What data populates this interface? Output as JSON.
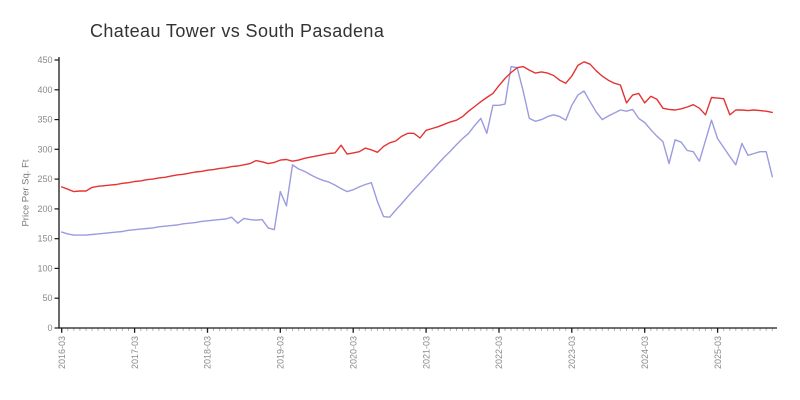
{
  "chart_data": {
    "type": "line",
    "title": "Chateau Tower vs South Pasadena",
    "ylabel": "Price Per Sq. Ft",
    "xlabel": "",
    "x_unit": "month",
    "x_start": "2016-03",
    "x_end": "2025-12",
    "x_major_ticks": [
      "2016-03",
      "2017-03",
      "2018-03",
      "2019-03",
      "2020-03",
      "2021-03",
      "2022-03",
      "2023-03",
      "2024-03",
      "2025-03"
    ],
    "x_major_tick_interval_months": 12,
    "x_minor_tick_interval_months": 1,
    "x_tick_rotation": 90,
    "ylim": [
      0,
      450
    ],
    "y_ticks": [
      0,
      50,
      100,
      150,
      200,
      250,
      300,
      350,
      400,
      450
    ],
    "grid": false,
    "legend_position": "none",
    "axis_color": "#1a1a1a",
    "tick_label_color": "#8a8a8a",
    "series": [
      {
        "name": "Chateau Tower",
        "color": "#9b9be0",
        "values": [
          161,
          158,
          156,
          156,
          156,
          157,
          158,
          159,
          160,
          161,
          162,
          164,
          165,
          166,
          167,
          168,
          170,
          171,
          172,
          173,
          175,
          176,
          177,
          179,
          180,
          181,
          182,
          183,
          186,
          176,
          184,
          182,
          181,
          182,
          168,
          165,
          229,
          205,
          274,
          267,
          263,
          257,
          252,
          248,
          245,
          240,
          234,
          229,
          232,
          237,
          241,
          244,
          212,
          187,
          186,
          198,
          209,
          221,
          232,
          243,
          254,
          265,
          276,
          287,
          297,
          308,
          318,
          327,
          340,
          352,
          327,
          374,
          374,
          376,
          439,
          437,
          397,
          352,
          347,
          350,
          355,
          358,
          355,
          349,
          374,
          391,
          398,
          380,
          363,
          350,
          356,
          361,
          366,
          364,
          367,
          352,
          345,
          333,
          322,
          313,
          276,
          316,
          312,
          298,
          296,
          280,
          315,
          349,
          318,
          303,
          288,
          274,
          310,
          290,
          293,
          296,
          296,
          254
        ]
      },
      {
        "name": "South Pasadena",
        "color": "#e53333",
        "values": [
          237,
          233,
          229,
          230,
          230,
          236,
          238,
          239,
          240,
          241,
          243,
          244,
          246,
          247,
          249,
          250,
          252,
          253,
          255,
          257,
          258,
          260,
          262,
          263,
          265,
          266,
          268,
          269,
          271,
          272,
          274,
          276,
          281,
          279,
          276,
          278,
          282,
          283,
          280,
          282,
          285,
          287,
          289,
          291,
          293,
          294,
          307,
          292,
          294,
          296,
          302,
          299,
          295,
          305,
          311,
          314,
          322,
          327,
          327,
          319,
          332,
          335,
          338,
          342,
          346,
          349,
          355,
          364,
          372,
          380,
          387,
          394,
          407,
          419,
          429,
          437,
          439,
          433,
          428,
          430,
          428,
          424,
          416,
          411,
          423,
          441,
          447,
          443,
          432,
          423,
          416,
          411,
          408,
          378,
          391,
          394,
          378,
          389,
          384,
          369,
          367,
          366,
          368,
          371,
          375,
          369,
          358,
          387,
          386,
          385,
          358,
          366,
          366,
          365,
          366,
          365,
          364,
          362
        ]
      }
    ]
  }
}
